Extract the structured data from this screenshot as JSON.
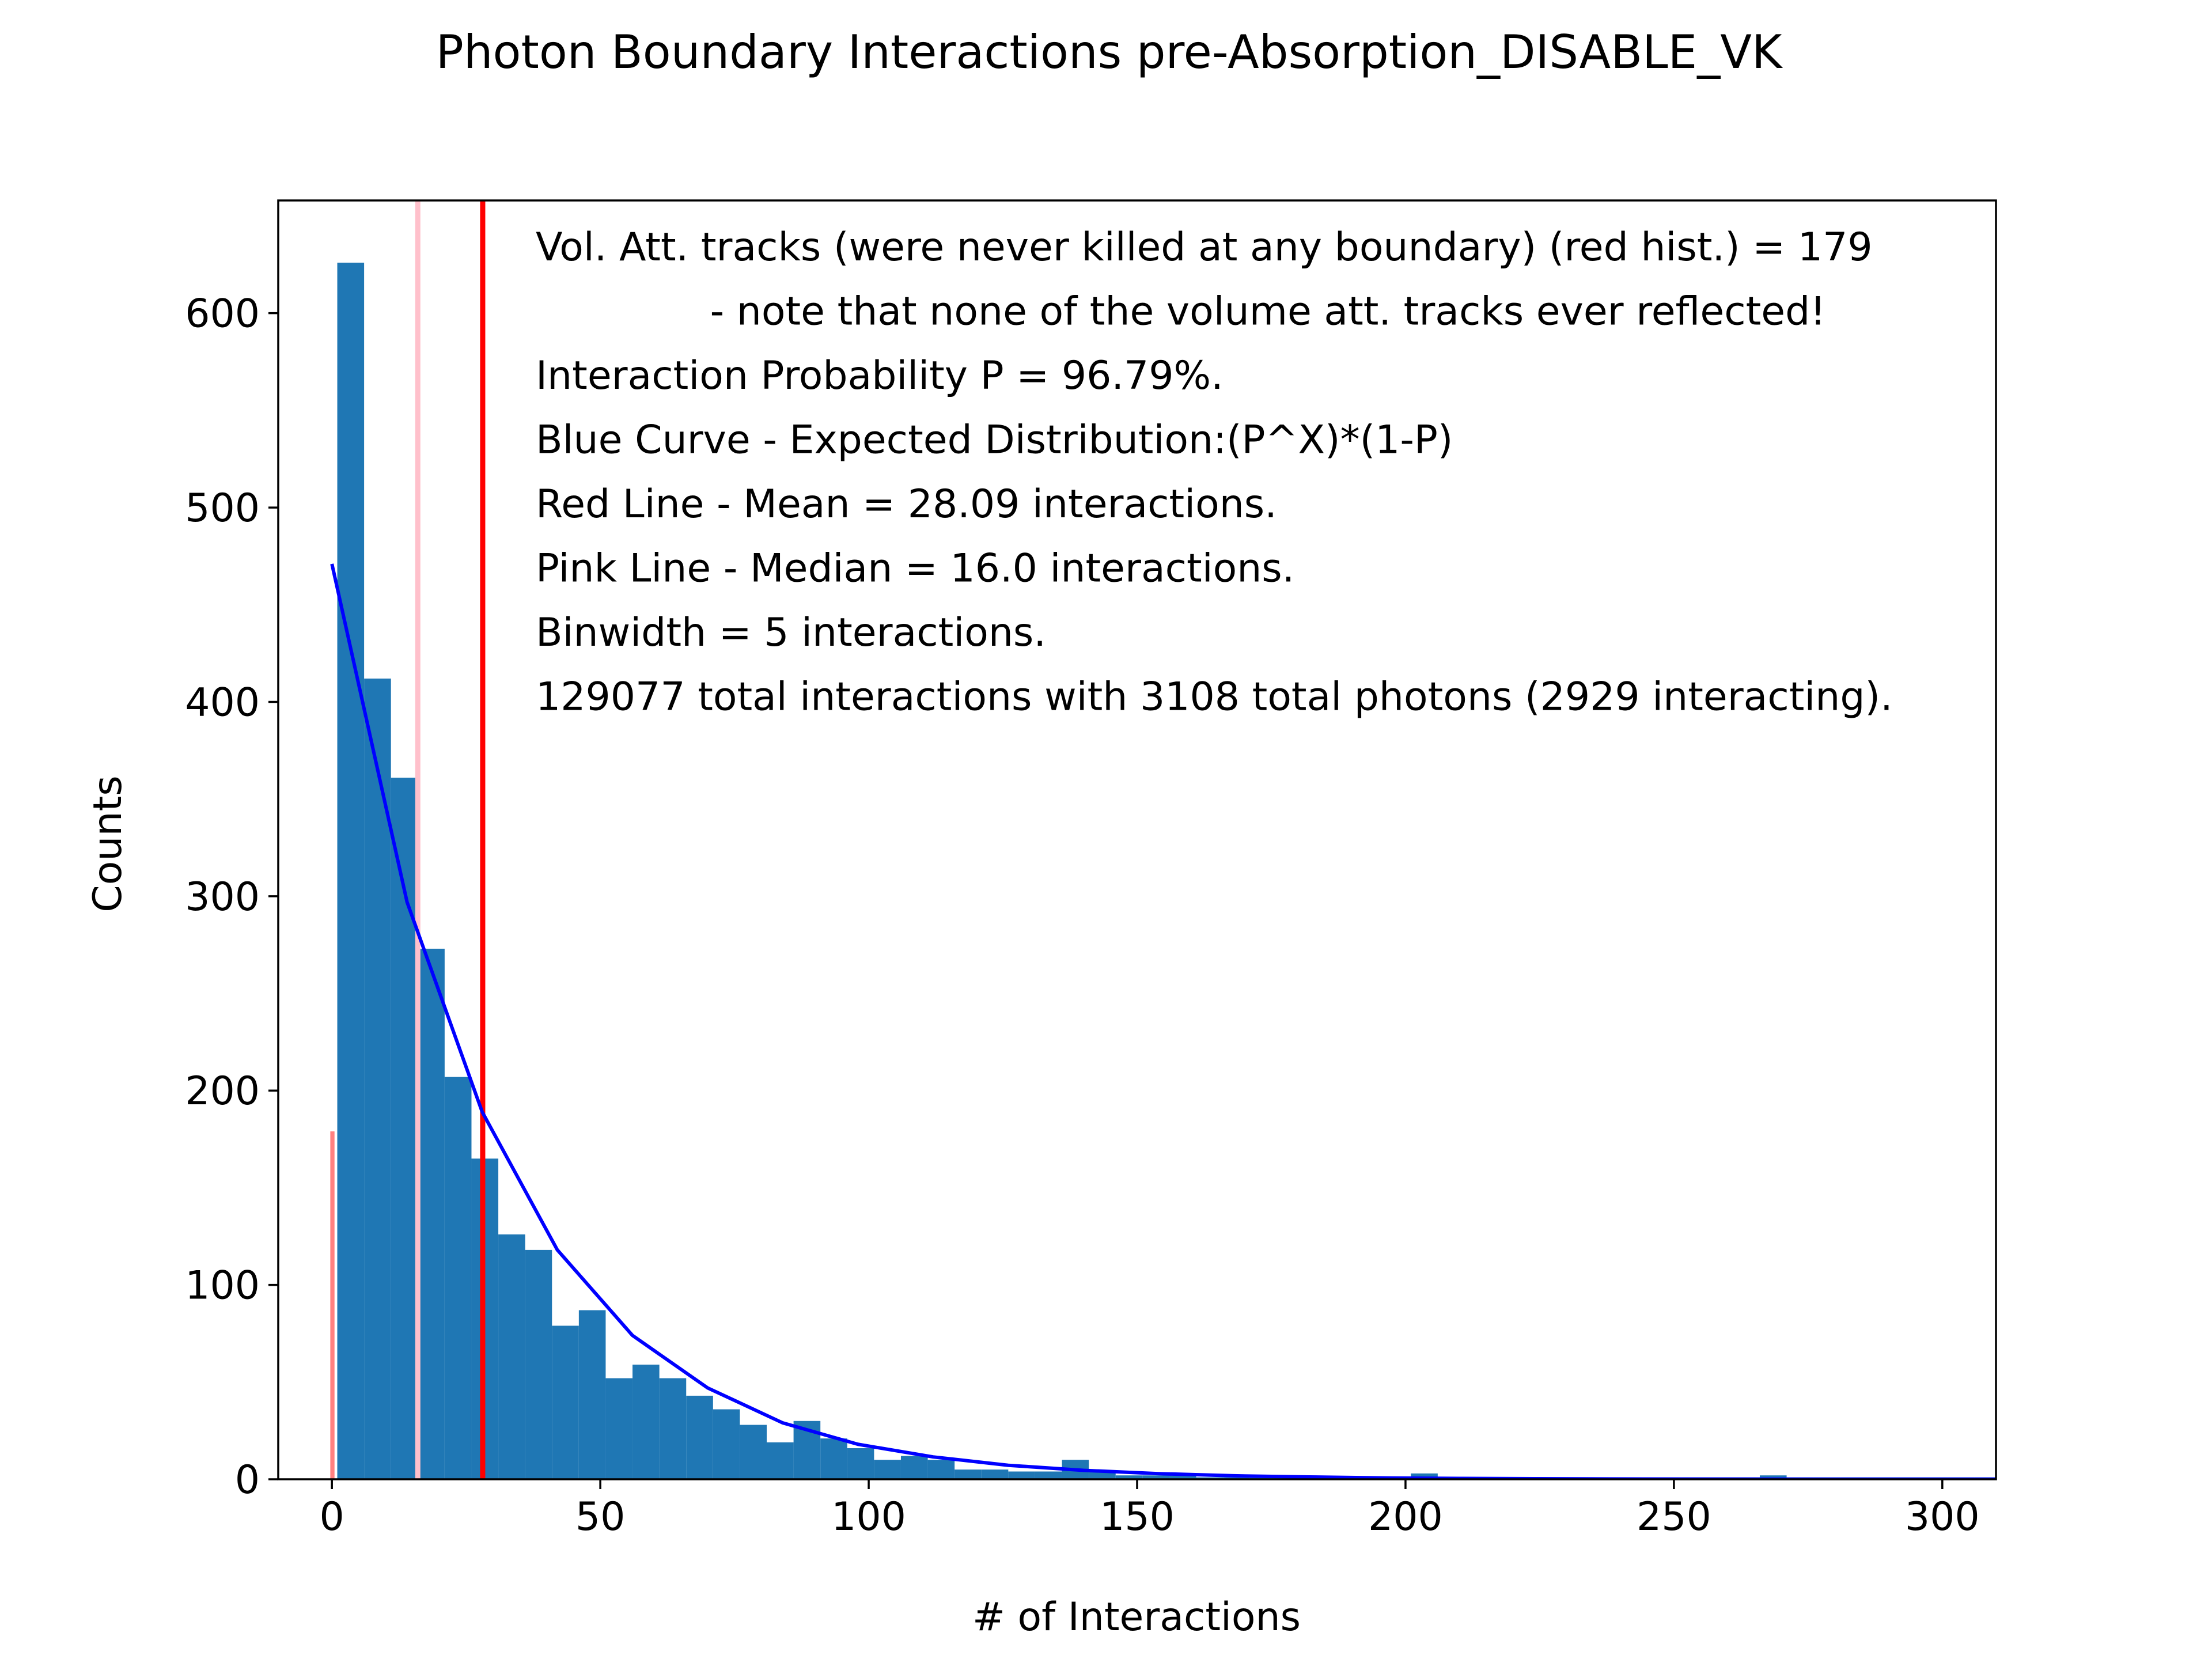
{
  "chart_data": {
    "type": "bar",
    "title": "Photon Boundary Interactions pre-Absorption_DISABLE_VK",
    "xlabel": "# of Interactions",
    "ylabel": "Counts",
    "xlim": [
      -10,
      310
    ],
    "ylim": [
      0,
      658
    ],
    "xticks": [
      0,
      50,
      100,
      150,
      200,
      250,
      300
    ],
    "yticks": [
      0,
      100,
      200,
      300,
      400,
      500,
      600
    ],
    "grid": false,
    "bin_width": 5,
    "histogram": {
      "name": "Interactions",
      "color": "#1f77b4",
      "bin_starts": [
        1,
        6,
        11,
        16,
        21,
        26,
        31,
        36,
        41,
        46,
        51,
        56,
        61,
        66,
        71,
        76,
        81,
        86,
        91,
        96,
        101,
        106,
        111,
        116,
        121,
        126,
        131,
        136,
        141,
        146,
        151,
        156,
        161,
        166,
        171,
        176,
        181,
        186,
        191,
        196,
        201,
        206,
        211,
        216,
        221,
        226,
        231,
        236,
        241,
        246,
        251,
        256,
        261,
        266,
        271,
        276,
        281,
        286,
        291,
        296,
        301,
        306
      ],
      "values": [
        626,
        412,
        361,
        273,
        207,
        165,
        126,
        118,
        79,
        87,
        52,
        59,
        52,
        43,
        36,
        28,
        19,
        30,
        21,
        16,
        10,
        12,
        10,
        5,
        5,
        4,
        4,
        10,
        4,
        2,
        2,
        2,
        1,
        1,
        1,
        1,
        1,
        1,
        1,
        1,
        3,
        1,
        1,
        1,
        1,
        1,
        1,
        1,
        1,
        1,
        1,
        1,
        1,
        2,
        1,
        1,
        1,
        1,
        1,
        1,
        1,
        1
      ]
    },
    "volume_att_hist": {
      "name": "Vol. Att. tracks (red hist.)",
      "color": "#ff8080",
      "x": 0,
      "width": 1,
      "value": 179
    },
    "mean_line": {
      "value": 28.09,
      "color": "#ff0000"
    },
    "median_line": {
      "value": 16.0,
      "color": "#ffc0cb"
    },
    "expected_curve": {
      "name": "Expected Distribution",
      "color": "#0000ff",
      "x": [
        0,
        14,
        28,
        42,
        56,
        70,
        84,
        98,
        112,
        126,
        140,
        154,
        168,
        182,
        196,
        210,
        224,
        238,
        252,
        266,
        280,
        294,
        308,
        310
      ],
      "y": [
        471,
        297,
        189,
        118,
        74,
        47,
        29,
        18,
        11.5,
        7.2,
        4.6,
        2.9,
        1.8,
        1.2,
        0.7,
        0.45,
        0.3,
        0.18,
        0.12,
        0.07,
        0.05,
        0.03,
        0.02,
        0.02
      ]
    },
    "annotations": [
      "Vol. Att. tracks (were never killed at any boundary) (red hist.) = 179",
      "              - note that none of the volume att. tracks ever reflected!",
      "Interaction Probability P = 96.79%.",
      "Blue Curve - Expected Distribution:(P^X)*(1-P)",
      "Red Line - Mean = 28.09 interactions.",
      "Pink Line - Median = 16.0 interactions.",
      "Binwidth = 5 interactions.",
      "129077 total interactions with 3108 total photons (2929 interacting)."
    ]
  }
}
